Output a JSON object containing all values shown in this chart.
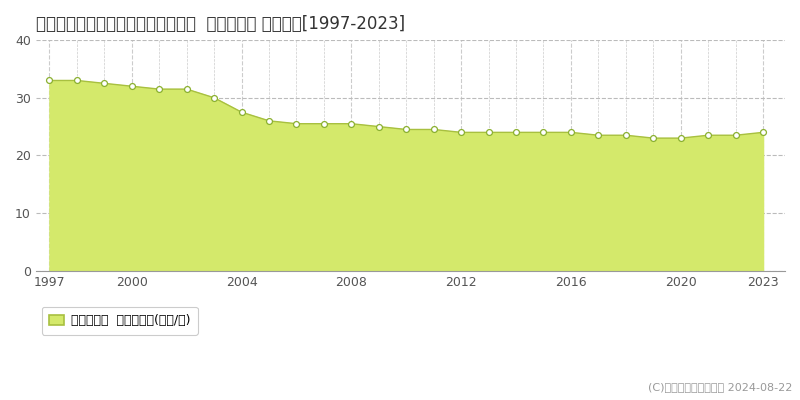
{
  "title": "愛知県豊川市白鳥町下郷中６７番５  基準地価格 地価推移[1997-2023]",
  "years": [
    1997,
    1998,
    1999,
    2000,
    2001,
    2002,
    2003,
    2004,
    2005,
    2006,
    2007,
    2008,
    2009,
    2010,
    2011,
    2012,
    2013,
    2014,
    2015,
    2016,
    2017,
    2018,
    2019,
    2020,
    2021,
    2022,
    2023
  ],
  "values": [
    33.0,
    33.0,
    32.5,
    32.0,
    31.5,
    31.5,
    30.0,
    27.5,
    26.0,
    25.5,
    25.5,
    25.5,
    25.0,
    24.5,
    24.5,
    24.0,
    24.0,
    24.0,
    24.0,
    24.0,
    23.5,
    23.5,
    23.0,
    23.0,
    23.5,
    23.5,
    24.0
  ],
  "fill_color": "#d4e96b",
  "line_color": "#a8c040",
  "marker_facecolor": "#ffffff",
  "marker_edgecolor": "#8ab030",
  "background_color": "#ffffff",
  "plot_bg_color": "#ffffff",
  "grid_color_horiz": "#bbbbbb",
  "grid_color_vert": "#cccccc",
  "ylim": [
    0,
    40
  ],
  "yticks": [
    0,
    10,
    20,
    30,
    40
  ],
  "xticks": [
    1997,
    2000,
    2004,
    2008,
    2012,
    2016,
    2020,
    2023
  ],
  "xlim_left": 1996.5,
  "xlim_right": 2023.8,
  "legend_label": "基準地価格  平均坪単価(万円/坪)",
  "copyright_text": "(C)土地価格ドットコム 2024-08-22",
  "title_fontsize": 12,
  "tick_fontsize": 9,
  "legend_fontsize": 9,
  "copyright_fontsize": 8
}
